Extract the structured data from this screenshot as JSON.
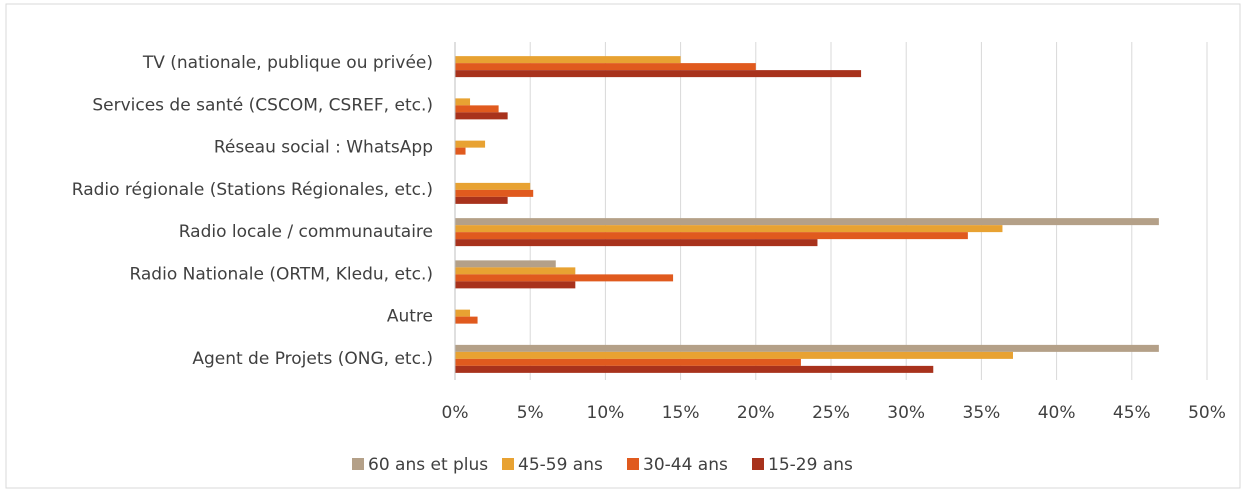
{
  "chart_data": {
    "type": "hbar",
    "categories": [
      "TV (nationale, publique ou privée)",
      "Services de santé (CSCOM, CSREF, etc.)",
      "Réseau social : WhatsApp",
      "Radio régionale (Stations Régionales, etc.)",
      "Radio locale / communautaire",
      "Radio Nationale (ORTM, Kledu, etc.)",
      "Autre",
      "Agent de Projets (ONG, etc.)"
    ],
    "series": [
      {
        "name": "60 ans et plus",
        "color": "#b4a088",
        "values": [
          0,
          0,
          0,
          0,
          46.8,
          6.7,
          0,
          46.8
        ]
      },
      {
        "name": "45-59 ans",
        "color": "#e8a232",
        "values": [
          15,
          1,
          2,
          5,
          36.4,
          8,
          1,
          37.1
        ]
      },
      {
        "name": "30-44 ans",
        "color": "#e05a1e",
        "values": [
          20,
          2.9,
          0.7,
          5.2,
          34.1,
          14.5,
          1.5,
          23
        ]
      },
      {
        "name": "15-29 ans",
        "color": "#a8321c",
        "values": [
          27,
          3.5,
          0,
          3.5,
          24.1,
          8,
          0,
          31.8
        ]
      }
    ],
    "xlim": [
      0,
      50
    ],
    "xticks": [
      {
        "value": 0,
        "label": "0%"
      },
      {
        "value": 5,
        "label": "5%"
      },
      {
        "value": 10,
        "label": "10%"
      },
      {
        "value": 15,
        "label": "15%"
      },
      {
        "value": 20,
        "label": "20%"
      },
      {
        "value": 25,
        "label": "25%"
      },
      {
        "value": 30,
        "label": "30%"
      },
      {
        "value": 35,
        "label": "35%"
      },
      {
        "value": 40,
        "label": "40%"
      },
      {
        "value": 45,
        "label": "45%"
      },
      {
        "value": 50,
        "label": "50%"
      }
    ],
    "grid": true,
    "legend": "bottom"
  }
}
